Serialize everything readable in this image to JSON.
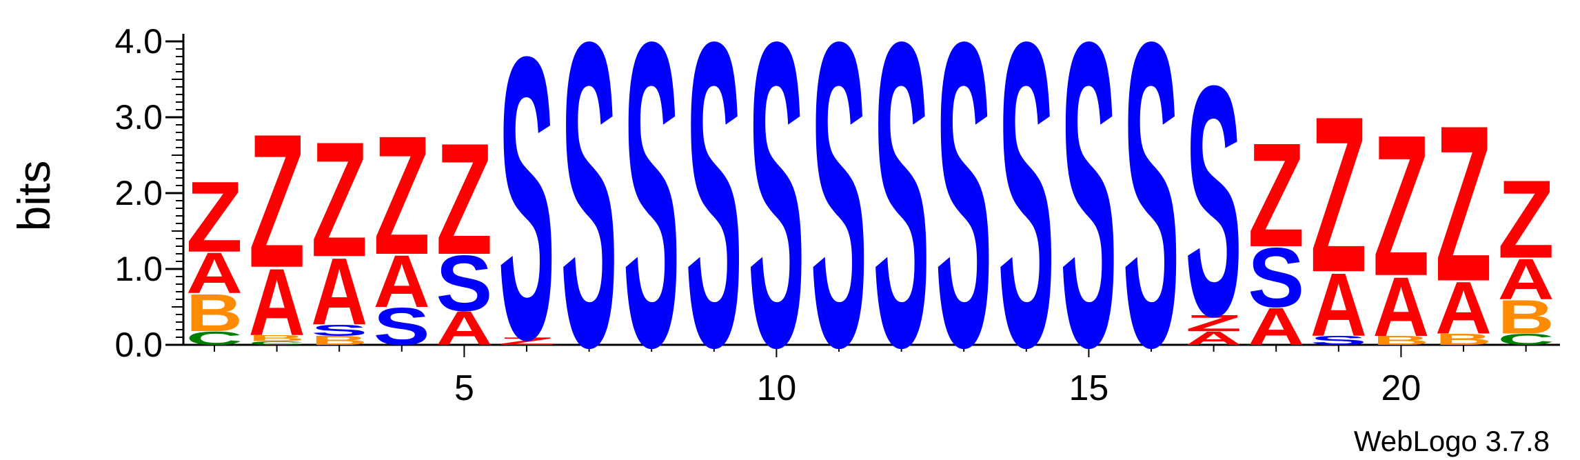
{
  "chart_data": {
    "type": "sequence-logo",
    "ylabel": "bits",
    "ylim": [
      0,
      4.1
    ],
    "y_ticks": [
      "0.0",
      "1.0",
      "2.0",
      "3.0",
      "4.0"
    ],
    "y_tick_values": [
      0,
      1,
      2,
      3,
      4
    ],
    "x_tick_labels": [
      "5",
      "10",
      "15",
      "20"
    ],
    "x_tick_positions": [
      5,
      10,
      15,
      20
    ],
    "position_range": [
      1,
      22
    ],
    "colors": {
      "Z": "#ff0000",
      "A": "#ff0000",
      "S": "#0000ff",
      "B": "#ff8c00",
      "C": "#008000"
    },
    "positions": [
      {
        "pos": 1,
        "stack": [
          {
            "letter": "C",
            "bits": 0.18
          },
          {
            "letter": "B",
            "bits": 0.5
          },
          {
            "letter": "A",
            "bits": 0.55
          },
          {
            "letter": "Z",
            "bits": 0.95
          }
        ]
      },
      {
        "pos": 2,
        "stack": [
          {
            "letter": "C",
            "bits": 0.05
          },
          {
            "letter": "B",
            "bits": 0.08
          },
          {
            "letter": "A",
            "bits": 0.9
          },
          {
            "letter": "Z",
            "bits": 1.8
          }
        ]
      },
      {
        "pos": 3,
        "stack": [
          {
            "letter": "B",
            "bits": 0.12
          },
          {
            "letter": "S",
            "bits": 0.15
          },
          {
            "letter": "A",
            "bits": 0.9
          },
          {
            "letter": "Z",
            "bits": 1.55
          }
        ]
      },
      {
        "pos": 4,
        "stack": [
          {
            "letter": "S",
            "bits": 0.5
          },
          {
            "letter": "A",
            "bits": 0.7
          },
          {
            "letter": "Z",
            "bits": 1.6
          }
        ]
      },
      {
        "pos": 5,
        "stack": [
          {
            "letter": "A",
            "bits": 0.45
          },
          {
            "letter": "S",
            "bits": 0.75
          },
          {
            "letter": "Z",
            "bits": 1.5
          }
        ]
      },
      {
        "pos": 6,
        "stack": [
          {
            "letter": "Z",
            "bits": 0.1
          },
          {
            "letter": "S",
            "bits": 3.8
          }
        ]
      },
      {
        "pos": 7,
        "stack": [
          {
            "letter": "S",
            "bits": 4.1
          }
        ]
      },
      {
        "pos": 8,
        "stack": [
          {
            "letter": "S",
            "bits": 4.1
          }
        ]
      },
      {
        "pos": 9,
        "stack": [
          {
            "letter": "S",
            "bits": 4.1
          }
        ]
      },
      {
        "pos": 10,
        "stack": [
          {
            "letter": "S",
            "bits": 4.1
          }
        ]
      },
      {
        "pos": 11,
        "stack": [
          {
            "letter": "S",
            "bits": 4.1
          }
        ]
      },
      {
        "pos": 12,
        "stack": [
          {
            "letter": "S",
            "bits": 4.1
          }
        ]
      },
      {
        "pos": 13,
        "stack": [
          {
            "letter": "S",
            "bits": 4.1
          }
        ]
      },
      {
        "pos": 14,
        "stack": [
          {
            "letter": "S",
            "bits": 4.1
          }
        ]
      },
      {
        "pos": 15,
        "stack": [
          {
            "letter": "S",
            "bits": 4.1
          }
        ]
      },
      {
        "pos": 16,
        "stack": [
          {
            "letter": "S",
            "bits": 4.1
          }
        ]
      },
      {
        "pos": 17,
        "stack": [
          {
            "letter": "A",
            "bits": 0.18
          },
          {
            "letter": "Z",
            "bits": 0.22
          },
          {
            "letter": "S",
            "bits": 3.1
          }
        ]
      },
      {
        "pos": 18,
        "stack": [
          {
            "letter": "A",
            "bits": 0.5
          },
          {
            "letter": "S",
            "bits": 0.8
          },
          {
            "letter": "Z",
            "bits": 1.4
          }
        ]
      },
      {
        "pos": 19,
        "stack": [
          {
            "letter": "S",
            "bits": 0.12
          },
          {
            "letter": "A",
            "bits": 0.85
          },
          {
            "letter": "Z",
            "bits": 2.1
          }
        ]
      },
      {
        "pos": 20,
        "stack": [
          {
            "letter": "B",
            "bits": 0.12
          },
          {
            "letter": "A",
            "bits": 0.8
          },
          {
            "letter": "Z",
            "bits": 1.9
          }
        ]
      },
      {
        "pos": 21,
        "stack": [
          {
            "letter": "B",
            "bits": 0.15
          },
          {
            "letter": "A",
            "bits": 0.7
          },
          {
            "letter": "Z",
            "bits": 2.1
          }
        ]
      },
      {
        "pos": 22,
        "stack": [
          {
            "letter": "C",
            "bits": 0.15
          },
          {
            "letter": "B",
            "bits": 0.45
          },
          {
            "letter": "A",
            "bits": 0.55
          },
          {
            "letter": "Z",
            "bits": 1.05
          }
        ]
      }
    ]
  },
  "footer": {
    "credit": "WebLogo 3.7.8"
  }
}
